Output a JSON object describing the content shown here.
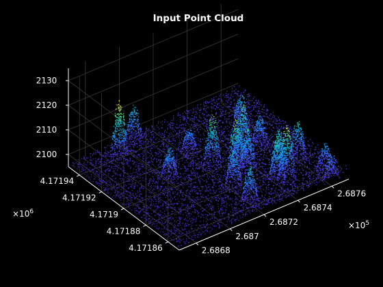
{
  "chart_data": {
    "type": "scatter",
    "variant": "3d-point-cloud",
    "title": "Input Point Cloud",
    "xlabel": "",
    "ylabel": "",
    "zlabel": "",
    "x_ticks": [
      "2.6868",
      "2.687",
      "2.6872",
      "2.6874",
      "2.6876"
    ],
    "x_exponent": {
      "base": "×10",
      "power": "5"
    },
    "y_ticks": [
      "4.17186",
      "4.17188",
      "4.1719",
      "4.17192",
      "4.17194"
    ],
    "y_exponent": {
      "base": "×10",
      "power": "6"
    },
    "z_ticks": [
      "2100",
      "2110",
      "2120",
      "2130"
    ],
    "xlim": [
      268670,
      268770
    ],
    "ylim": [
      4171850,
      4171950
    ],
    "zlim": [
      2095,
      2135
    ],
    "grid": true,
    "colormap": "parula",
    "colors": {
      "background": "#000000",
      "axis_lines": "#ffffff",
      "grid": "#3a3a3a",
      "text": "#ffffff",
      "colormap_low": "#3e26a8",
      "colormap_mid": "#1ab1ca",
      "colormap_high": "#f9fb15"
    },
    "clusters": [
      {
        "x": 268690,
        "y": 4171935,
        "z_peak": 2122
      },
      {
        "x": 268700,
        "y": 4171905,
        "z_peak": 2110
      },
      {
        "x": 268705,
        "y": 4171945,
        "z_peak": 2112
      },
      {
        "x": 268718,
        "y": 4171860,
        "z_peak": 2112
      },
      {
        "x": 268720,
        "y": 4171878,
        "z_peak": 2112
      },
      {
        "x": 268720,
        "y": 4171918,
        "z_peak": 2107
      },
      {
        "x": 268722,
        "y": 4171900,
        "z_peak": 2119
      },
      {
        "x": 268728,
        "y": 4171888,
        "z_peak": 2119
      },
      {
        "x": 268733,
        "y": 4171885,
        "z_peak": 2115
      },
      {
        "x": 268735,
        "y": 4171895,
        "z_peak": 2111
      },
      {
        "x": 268738,
        "y": 4171866,
        "z_peak": 2116
      },
      {
        "x": 268740,
        "y": 4171900,
        "z_peak": 2118
      },
      {
        "x": 268743,
        "y": 4171865,
        "z_peak": 2120
      },
      {
        "x": 268745,
        "y": 4171875,
        "z_peak": 2114
      },
      {
        "x": 268750,
        "y": 4171900,
        "z_peak": 2110
      },
      {
        "x": 268752,
        "y": 4171920,
        "z_peak": 2111
      },
      {
        "x": 268758,
        "y": 4171878,
        "z_peak": 2113
      },
      {
        "x": 268760,
        "y": 4171850,
        "z_peak": 2108
      },
      {
        "x": 268763,
        "y": 4171861,
        "z_peak": 2108
      }
    ]
  }
}
